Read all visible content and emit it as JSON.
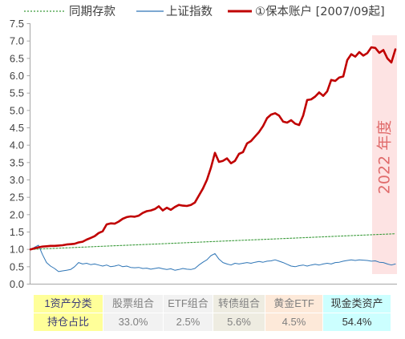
{
  "chart_data": {
    "type": "line",
    "ylim": [
      0,
      7.5
    ],
    "yticks": [
      "0.0",
      "0.5",
      "1.0",
      "1.5",
      "2.0",
      "2.5",
      "3.0",
      "3.5",
      "4.0",
      "4.5",
      "5.0",
      "5.5",
      "6.0",
      "6.5",
      "7.0",
      "7.5"
    ],
    "grid": false,
    "legend": "top",
    "series": [
      {
        "name": "同期存款",
        "color": "#3b9b3b",
        "line_style": "dotted",
        "values": [
          1.0,
          1.05,
          1.1,
          1.15,
          1.2,
          1.25,
          1.3,
          1.35,
          1.4,
          1.45
        ]
      },
      {
        "name": "上证指数",
        "color": "#2e75b6",
        "line_style": "solid",
        "values": [
          1.0,
          1.06,
          1.12,
          0.85,
          0.62,
          0.52,
          0.45,
          0.36,
          0.38,
          0.4,
          0.42,
          0.5,
          0.62,
          0.58,
          0.6,
          0.56,
          0.58,
          0.55,
          0.52,
          0.55,
          0.5,
          0.52,
          0.55,
          0.5,
          0.52,
          0.48,
          0.47,
          0.48,
          0.45,
          0.46,
          0.43,
          0.45,
          0.47,
          0.44,
          0.42,
          0.44,
          0.4,
          0.42,
          0.45,
          0.43,
          0.42,
          0.45,
          0.55,
          0.63,
          0.7,
          0.82,
          0.88,
          0.72,
          0.62,
          0.58,
          0.55,
          0.6,
          0.58,
          0.6,
          0.62,
          0.6,
          0.63,
          0.65,
          0.63,
          0.66,
          0.67,
          0.7,
          0.66,
          0.62,
          0.57,
          0.52,
          0.5,
          0.53,
          0.55,
          0.52,
          0.55,
          0.57,
          0.55,
          0.58,
          0.6,
          0.58,
          0.62,
          0.63,
          0.66,
          0.68,
          0.7,
          0.68,
          0.7,
          0.69,
          0.68,
          0.66,
          0.67,
          0.63,
          0.62,
          0.58,
          0.55,
          0.58
        ]
      },
      {
        "name": "①保本账户 [2007/09起]",
        "color": "#c00000",
        "line_style": "thick",
        "values": [
          1.0,
          1.03,
          1.06,
          1.08,
          1.09,
          1.1,
          1.1,
          1.11,
          1.12,
          1.14,
          1.15,
          1.16,
          1.2,
          1.22,
          1.28,
          1.33,
          1.38,
          1.47,
          1.52,
          1.72,
          1.75,
          1.74,
          1.8,
          1.88,
          1.93,
          1.95,
          1.94,
          1.97,
          2.05,
          2.1,
          2.12,
          2.16,
          2.24,
          2.12,
          2.2,
          2.14,
          2.22,
          2.28,
          2.26,
          2.25,
          2.28,
          2.35,
          2.55,
          2.75,
          3.0,
          3.35,
          3.78,
          3.52,
          3.55,
          3.62,
          3.48,
          3.55,
          3.75,
          3.8,
          4.05,
          4.12,
          4.25,
          4.38,
          4.55,
          4.78,
          4.88,
          4.92,
          4.85,
          4.68,
          4.65,
          4.72,
          4.62,
          4.58,
          4.85,
          5.3,
          5.32,
          5.4,
          5.52,
          5.42,
          5.55,
          5.88,
          5.85,
          5.95,
          5.98,
          6.45,
          6.62,
          6.55,
          6.68,
          6.58,
          6.65,
          6.82,
          6.8,
          6.66,
          6.74,
          6.5,
          6.38,
          6.76
        ]
      }
    ],
    "annotations": [
      {
        "text": "2022 年度",
        "color": "#e06b6b",
        "fill": "#fde3e3"
      }
    ]
  },
  "allocation_table": {
    "header_row": [
      "1资产分类",
      "股票组合",
      "ETF组合",
      "转债组合",
      "黄金ETF",
      "现金类资产"
    ],
    "value_row": [
      "持仓占比",
      "33.0%",
      "2.5%",
      "5.6%",
      "4.5%",
      "54.4%"
    ],
    "column_colors": [
      "#ffff99",
      "#f2f2f2",
      "#f2f2f2",
      "#eeece1",
      "#fde9d9",
      "#ccffff"
    ]
  }
}
